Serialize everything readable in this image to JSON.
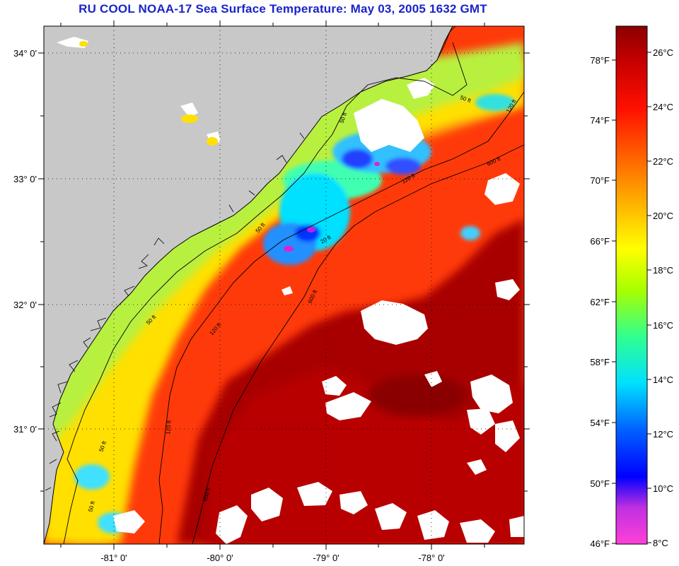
{
  "title": "RU COOL  NOAA-17  Sea Surface Temperature:  May 03, 2005 1632 GMT",
  "map": {
    "lat_labels": [
      "34° 0'",
      "33° 0'",
      "32° 0'",
      "31° 0'"
    ],
    "lon_labels": [
      "-81° 0'",
      "-80° 0'",
      "-79° 0'",
      "-78° 0'"
    ],
    "contour_labels": [
      "50 ft",
      "120 ft",
      "600 ft",
      "20 ft"
    ]
  },
  "colorbar": {
    "fahrenheit_labels": [
      "78°F",
      "74°F",
      "70°F",
      "66°F",
      "62°F",
      "58°F",
      "54°F",
      "50°F",
      "46°F"
    ],
    "celsius_labels": [
      "26°C",
      "24°C",
      "22°C",
      "20°C",
      "18°C",
      "16°C",
      "14°C",
      "12°C",
      "10°C",
      "8°C"
    ]
  },
  "colors": {
    "title": "#1a24c8",
    "land": "#c8c8c8",
    "warm": "#a80000",
    "cool": "#00e0ff",
    "cloud": "#ffffff"
  }
}
